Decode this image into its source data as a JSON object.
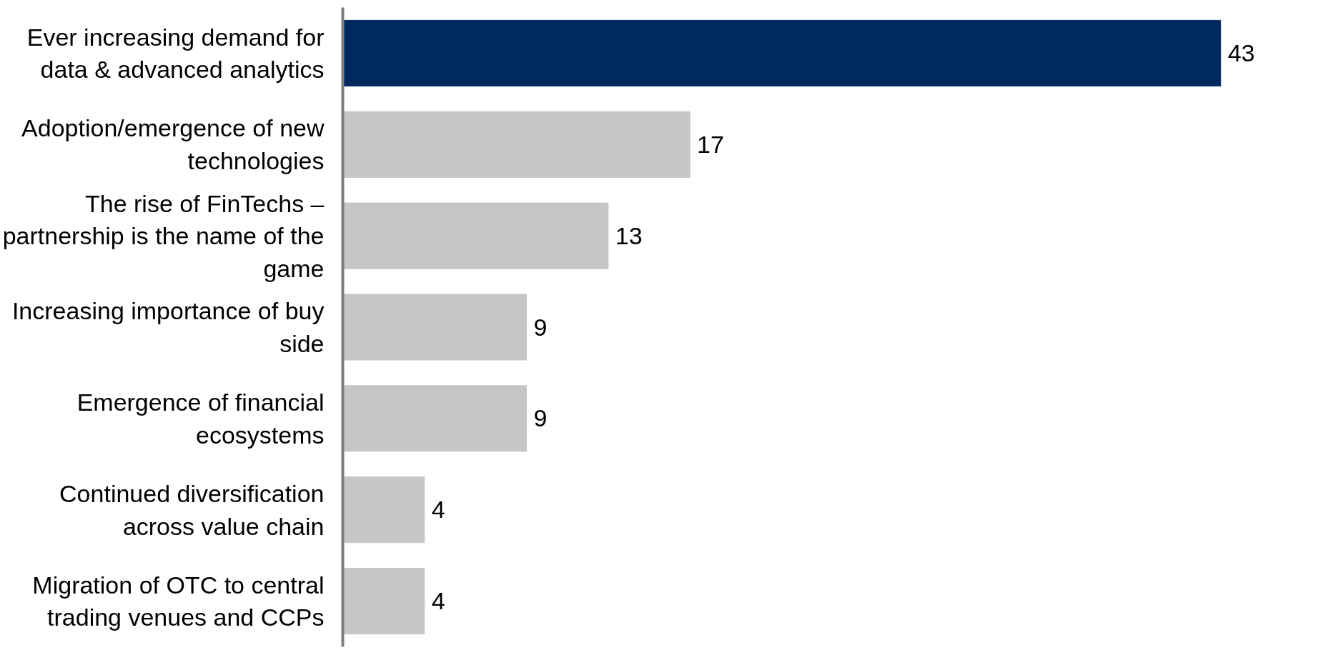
{
  "chart_data": {
    "type": "bar",
    "orientation": "horizontal",
    "data_labels": true,
    "categories": [
      "Ever increasing demand for data & advanced analytics",
      "Adoption/emergence of new technologies",
      "The rise of FinTechs – partnership is the name of the game",
      "Increasing importance of buy side",
      "Emergence of financial ecosystems",
      "Continued diversification across value chain",
      "Migration of OTC to central trading venues and CCPs"
    ],
    "values": [
      43,
      17,
      13,
      9,
      9,
      4,
      4
    ],
    "colors": [
      "#002960",
      "#c6c6c6",
      "#c6c6c6",
      "#c6c6c6",
      "#c6c6c6",
      "#c6c6c6",
      "#c6c6c6"
    ]
  }
}
